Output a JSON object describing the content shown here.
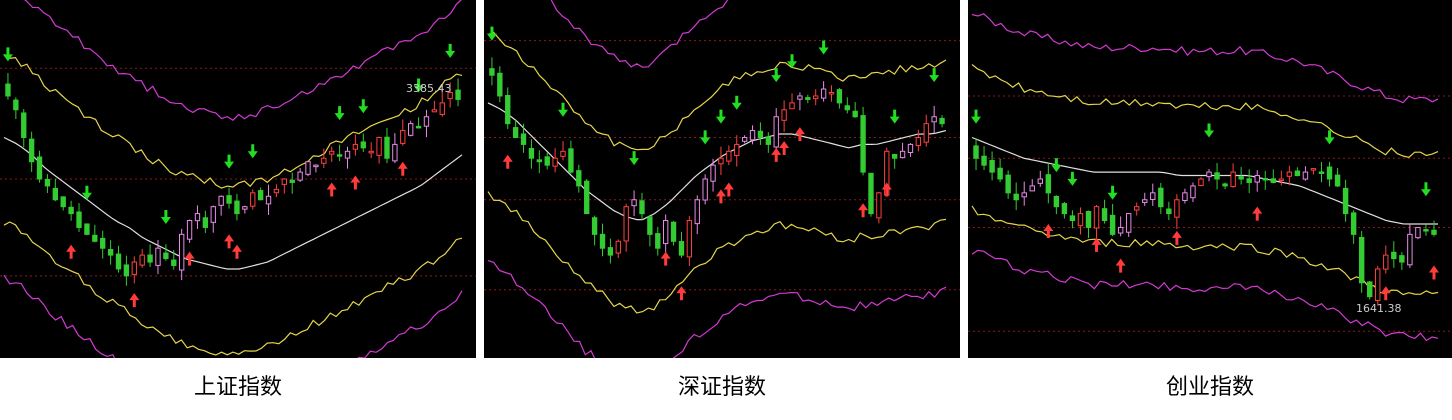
{
  "colors": {
    "background": "#000000",
    "candle_up": "#e88ae8",
    "candle_up_red": "#ff4040",
    "candle_down": "#33cc33",
    "ma_mid": "#e0e0e0",
    "band_inner": "#e6d64a",
    "band_outer": "#d43ad4",
    "arrow_buy": "#ff3b3b",
    "arrow_sell": "#22dd22",
    "grid": "#8a1a1a"
  },
  "icons": {
    "buy_marker": "red-up-arrow",
    "sell_marker": "green-down-arrow"
  },
  "chart_data": [
    {
      "type": "candlestick",
      "caption": "上证指数",
      "annotation": "3385.43",
      "seed": 11,
      "n": 58,
      "mid": [
        0.62,
        0.6,
        0.57,
        0.53,
        0.5,
        0.47,
        0.44,
        0.41,
        0.38,
        0.36,
        0.33,
        0.31,
        0.29,
        0.27,
        0.26,
        0.25,
        0.24,
        0.24,
        0.25,
        0.26,
        0.28,
        0.3,
        0.32,
        0.34,
        0.36,
        0.38,
        0.4,
        0.42,
        0.44,
        0.46,
        0.48,
        0.51,
        0.54,
        0.57
      ],
      "band_inner_up": 0.24,
      "band_inner_dn": 0.22,
      "band_outer_up": 0.44,
      "band_outer_dn": 0.38,
      "close": [
        0.74,
        0.7,
        0.62,
        0.55,
        0.5,
        0.48,
        0.44,
        0.42,
        0.4,
        0.36,
        0.34,
        0.32,
        0.3,
        0.28,
        0.24,
        0.22,
        0.26,
        0.28,
        0.26,
        0.3,
        0.27,
        0.25,
        0.34,
        0.38,
        0.4,
        0.36,
        0.42,
        0.45,
        0.43,
        0.4,
        0.42,
        0.46,
        0.44,
        0.45,
        0.47,
        0.5,
        0.49,
        0.52,
        0.55,
        0.54,
        0.56,
        0.58,
        0.57,
        0.58,
        0.6,
        0.59,
        0.58,
        0.62,
        0.56,
        0.6,
        0.64,
        0.66,
        0.65,
        0.68,
        0.7,
        0.72,
        0.75,
        0.73
      ],
      "buys": [
        8,
        16,
        23,
        28,
        29,
        41,
        44,
        50
      ],
      "sells": [
        0,
        10,
        20,
        28,
        31,
        42,
        45,
        52,
        56
      ],
      "grid_rows": [
        0.22,
        0.5,
        0.82
      ]
    },
    {
      "type": "candlestick",
      "caption": "深证指数",
      "annotation": "",
      "seed": 23,
      "n": 58,
      "mid": [
        0.72,
        0.7,
        0.67,
        0.63,
        0.59,
        0.55,
        0.51,
        0.47,
        0.44,
        0.41,
        0.39,
        0.38,
        0.4,
        0.43,
        0.47,
        0.51,
        0.54,
        0.57,
        0.59,
        0.61,
        0.62,
        0.63,
        0.63,
        0.62,
        0.61,
        0.6,
        0.59,
        0.6,
        0.6,
        0.61,
        0.62,
        0.63,
        0.63,
        0.64
      ],
      "band_inner_up": 0.2,
      "band_inner_dn": 0.24,
      "band_outer_up": 0.44,
      "band_outer_dn": 0.44,
      "close": [
        0.8,
        0.74,
        0.66,
        0.62,
        0.6,
        0.56,
        0.55,
        0.54,
        0.56,
        0.58,
        0.52,
        0.48,
        0.4,
        0.34,
        0.3,
        0.28,
        0.32,
        0.42,
        0.44,
        0.4,
        0.34,
        0.3,
        0.38,
        0.32,
        0.28,
        0.38,
        0.44,
        0.5,
        0.54,
        0.56,
        0.58,
        0.6,
        0.62,
        0.64,
        0.62,
        0.6,
        0.68,
        0.7,
        0.72,
        0.74,
        0.73,
        0.74,
        0.76,
        0.75,
        0.72,
        0.7,
        0.68,
        0.52,
        0.4,
        0.46,
        0.58,
        0.56,
        0.58,
        0.6,
        0.62,
        0.66,
        0.68,
        0.66
      ],
      "buys": [
        2,
        22,
        24,
        29,
        30,
        36,
        37,
        39,
        47,
        50
      ],
      "sells": [
        0,
        9,
        18,
        27,
        29,
        31,
        36,
        38,
        42,
        51,
        56
      ],
      "grid_rows": [
        0.18,
        0.44,
        0.62,
        0.9
      ]
    },
    {
      "type": "candlestick",
      "caption": "创业指数",
      "annotation": "1641.38",
      "seed": 37,
      "n": 58,
      "mid": [
        0.62,
        0.6,
        0.58,
        0.56,
        0.55,
        0.54,
        0.53,
        0.52,
        0.52,
        0.52,
        0.52,
        0.52,
        0.51,
        0.51,
        0.51,
        0.51,
        0.51,
        0.5,
        0.49,
        0.48,
        0.46,
        0.44,
        0.42,
        0.4,
        0.38,
        0.37,
        0.37,
        0.37
      ],
      "band_inner_up": 0.2,
      "band_inner_dn": 0.18,
      "band_outer_up": 0.36,
      "band_outer_dn": 0.3,
      "close": [
        0.56,
        0.54,
        0.52,
        0.5,
        0.46,
        0.44,
        0.46,
        0.48,
        0.5,
        0.46,
        0.42,
        0.4,
        0.38,
        0.4,
        0.36,
        0.42,
        0.38,
        0.34,
        0.36,
        0.4,
        0.42,
        0.44,
        0.46,
        0.42,
        0.4,
        0.44,
        0.46,
        0.48,
        0.5,
        0.52,
        0.5,
        0.48,
        0.52,
        0.5,
        0.49,
        0.51,
        0.5,
        0.49,
        0.5,
        0.52,
        0.51,
        0.52,
        0.53,
        0.52,
        0.5,
        0.48,
        0.4,
        0.34,
        0.2,
        0.16,
        0.24,
        0.28,
        0.27,
        0.26,
        0.34,
        0.36,
        0.35,
        0.34
      ],
      "buys": [
        9,
        15,
        18,
        25,
        35,
        51,
        57
      ],
      "sells": [
        0,
        10,
        12,
        17,
        29,
        44,
        56
      ],
      "grid_rows": [
        0.06,
        0.36,
        0.56,
        0.74
      ]
    }
  ]
}
